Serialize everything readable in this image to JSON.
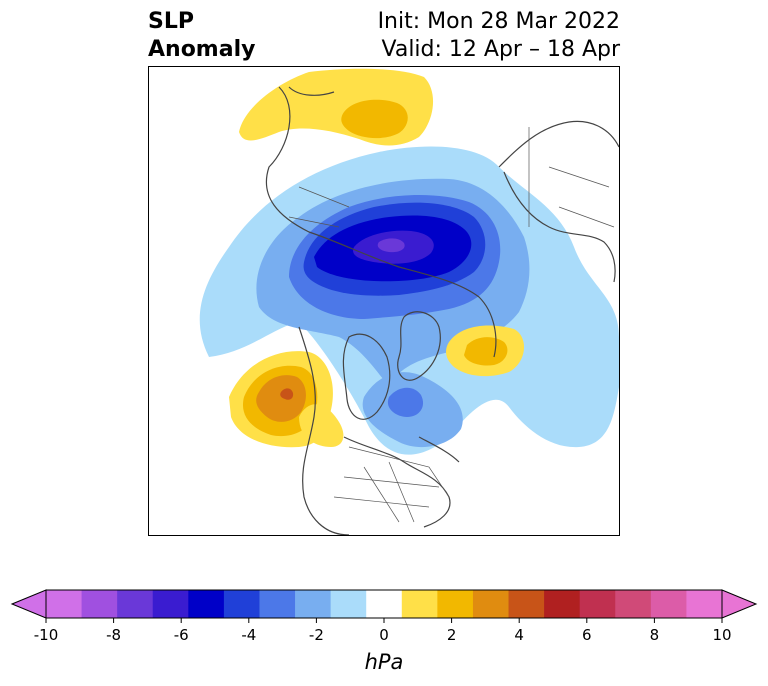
{
  "title": {
    "left_line1": "SLP",
    "left_line2": "Anomaly",
    "right_line1": "Init: Mon 28 Mar 2022",
    "right_line2": "Valid: 12 Apr – 18 Apr"
  },
  "colorbar": {
    "unit": "hPa",
    "min": -10,
    "max": 10,
    "step": 1,
    "tick_labels": [
      "-10",
      "-8",
      "-6",
      "-4",
      "-2",
      "0",
      "2",
      "4",
      "6",
      "8",
      "10"
    ],
    "tick_values": [
      -10,
      -8,
      -6,
      -4,
      -2,
      0,
      2,
      4,
      6,
      8,
      10
    ],
    "extend": "both",
    "colors": [
      "#d070e8",
      "#a050e0",
      "#6a38d8",
      "#3a1cd0",
      "#0000c8",
      "#2040d8",
      "#4c78e8",
      "#78aef0",
      "#aadcfa",
      "#ffffff",
      "#ffe048",
      "#f2b800",
      "#e08c10",
      "#c85418",
      "#b02020",
      "#c03050",
      "#d04a78",
      "#dc5ca8",
      "#e874d4"
    ],
    "under_color": "#d070e8",
    "over_color": "#e874d4"
  },
  "map": {
    "projection": "north-polar-stereographic",
    "colors": {
      "land_outline": "#444444",
      "neg_light": "#aadcfa",
      "neg_2": "#78aef0",
      "neg_3": "#4c78e8",
      "neg_4": "#2040d8",
      "neg_5": "#0000c8",
      "neg_6": "#3a1cd0",
      "neg_7": "#6a38d8",
      "pos_1": "#ffe048",
      "pos_2": "#f2b800",
      "pos_3": "#e08c10",
      "pos_4": "#c85418"
    }
  }
}
